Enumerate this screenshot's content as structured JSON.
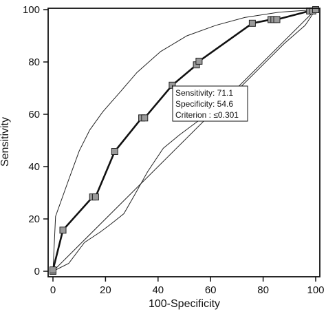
{
  "chart_data": {
    "type": "line",
    "xlabel": "100-Specificity",
    "ylabel": "Sensitivity",
    "xlim": [
      0,
      100
    ],
    "ylim": [
      0,
      100
    ],
    "xticks": [
      "0",
      "20",
      "40",
      "60",
      "80",
      "100"
    ],
    "yticks": [
      "0",
      "20",
      "40",
      "60",
      "80",
      "100"
    ],
    "grid": false,
    "series": [
      {
        "style": "roc",
        "x": [
          0,
          0,
          3.8,
          15.1,
          16.2,
          23.5,
          33.8,
          34.9,
          45.4,
          54.6,
          55.6,
          75.9,
          83.0,
          84.1,
          85.2,
          97.7,
          98.9,
          100
        ],
        "y": [
          0,
          0.5,
          15.7,
          28.4,
          28.4,
          45.8,
          58.6,
          58.6,
          71.1,
          78.9,
          80.3,
          94.8,
          96.2,
          96.2,
          96.2,
          99.5,
          99.5,
          100
        ]
      },
      {
        "style": "ci-upper",
        "x": [
          0,
          1,
          6,
          10,
          14,
          19,
          26,
          32,
          41,
          51,
          62,
          73,
          86,
          100
        ],
        "y": [
          0,
          21,
          35,
          46,
          54,
          61,
          69,
          76,
          84,
          90,
          94,
          97,
          99,
          100
        ]
      },
      {
        "style": "ci-lower",
        "x": [
          0,
          6,
          12,
          18,
          22,
          27,
          31,
          36,
          42,
          48,
          56,
          64,
          72,
          80,
          88,
          96,
          100
        ],
        "y": [
          0,
          3,
          11,
          15,
          18,
          22,
          29,
          38,
          47,
          52,
          58,
          64,
          71,
          79,
          87,
          94,
          100
        ]
      },
      {
        "style": "reference",
        "x": [
          0,
          100
        ],
        "y": [
          0,
          100
        ]
      }
    ],
    "annotation": {
      "lines": [
        "Sensitivity: 71.1",
        "Specificity: 54.6",
        "Criterion : ≤0.301"
      ],
      "anchor": {
        "x": 45.4,
        "y": 71.1
      }
    }
  }
}
